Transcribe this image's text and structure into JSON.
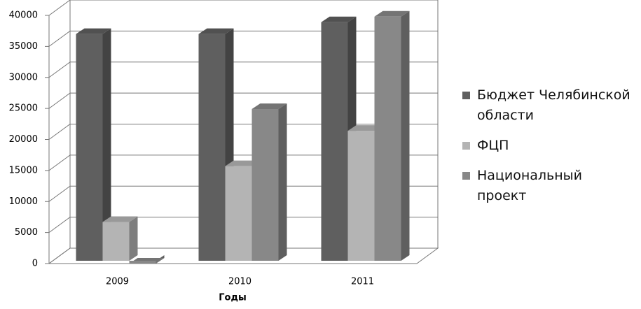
{
  "chart_data": {
    "type": "bar3d",
    "x_label": "Годы",
    "categories": [
      "2009",
      "2010",
      "2011"
    ],
    "series": [
      {
        "name": "Бюджет Челябинской области",
        "color": "#5f5f5f",
        "values": [
          37000,
          37000,
          38900
        ]
      },
      {
        "name": "ФЦП",
        "color": "#b4b4b4",
        "values": [
          6700,
          15700,
          21400
        ]
      },
      {
        "name": "Национальный проект",
        "color": "#888888",
        "values": [
          0,
          24900,
          39800
        ]
      }
    ],
    "ylim": [
      0,
      40000
    ],
    "yticks": [
      0,
      5000,
      10000,
      15000,
      20000,
      25000,
      30000,
      35000,
      40000
    ],
    "grid": true
  }
}
